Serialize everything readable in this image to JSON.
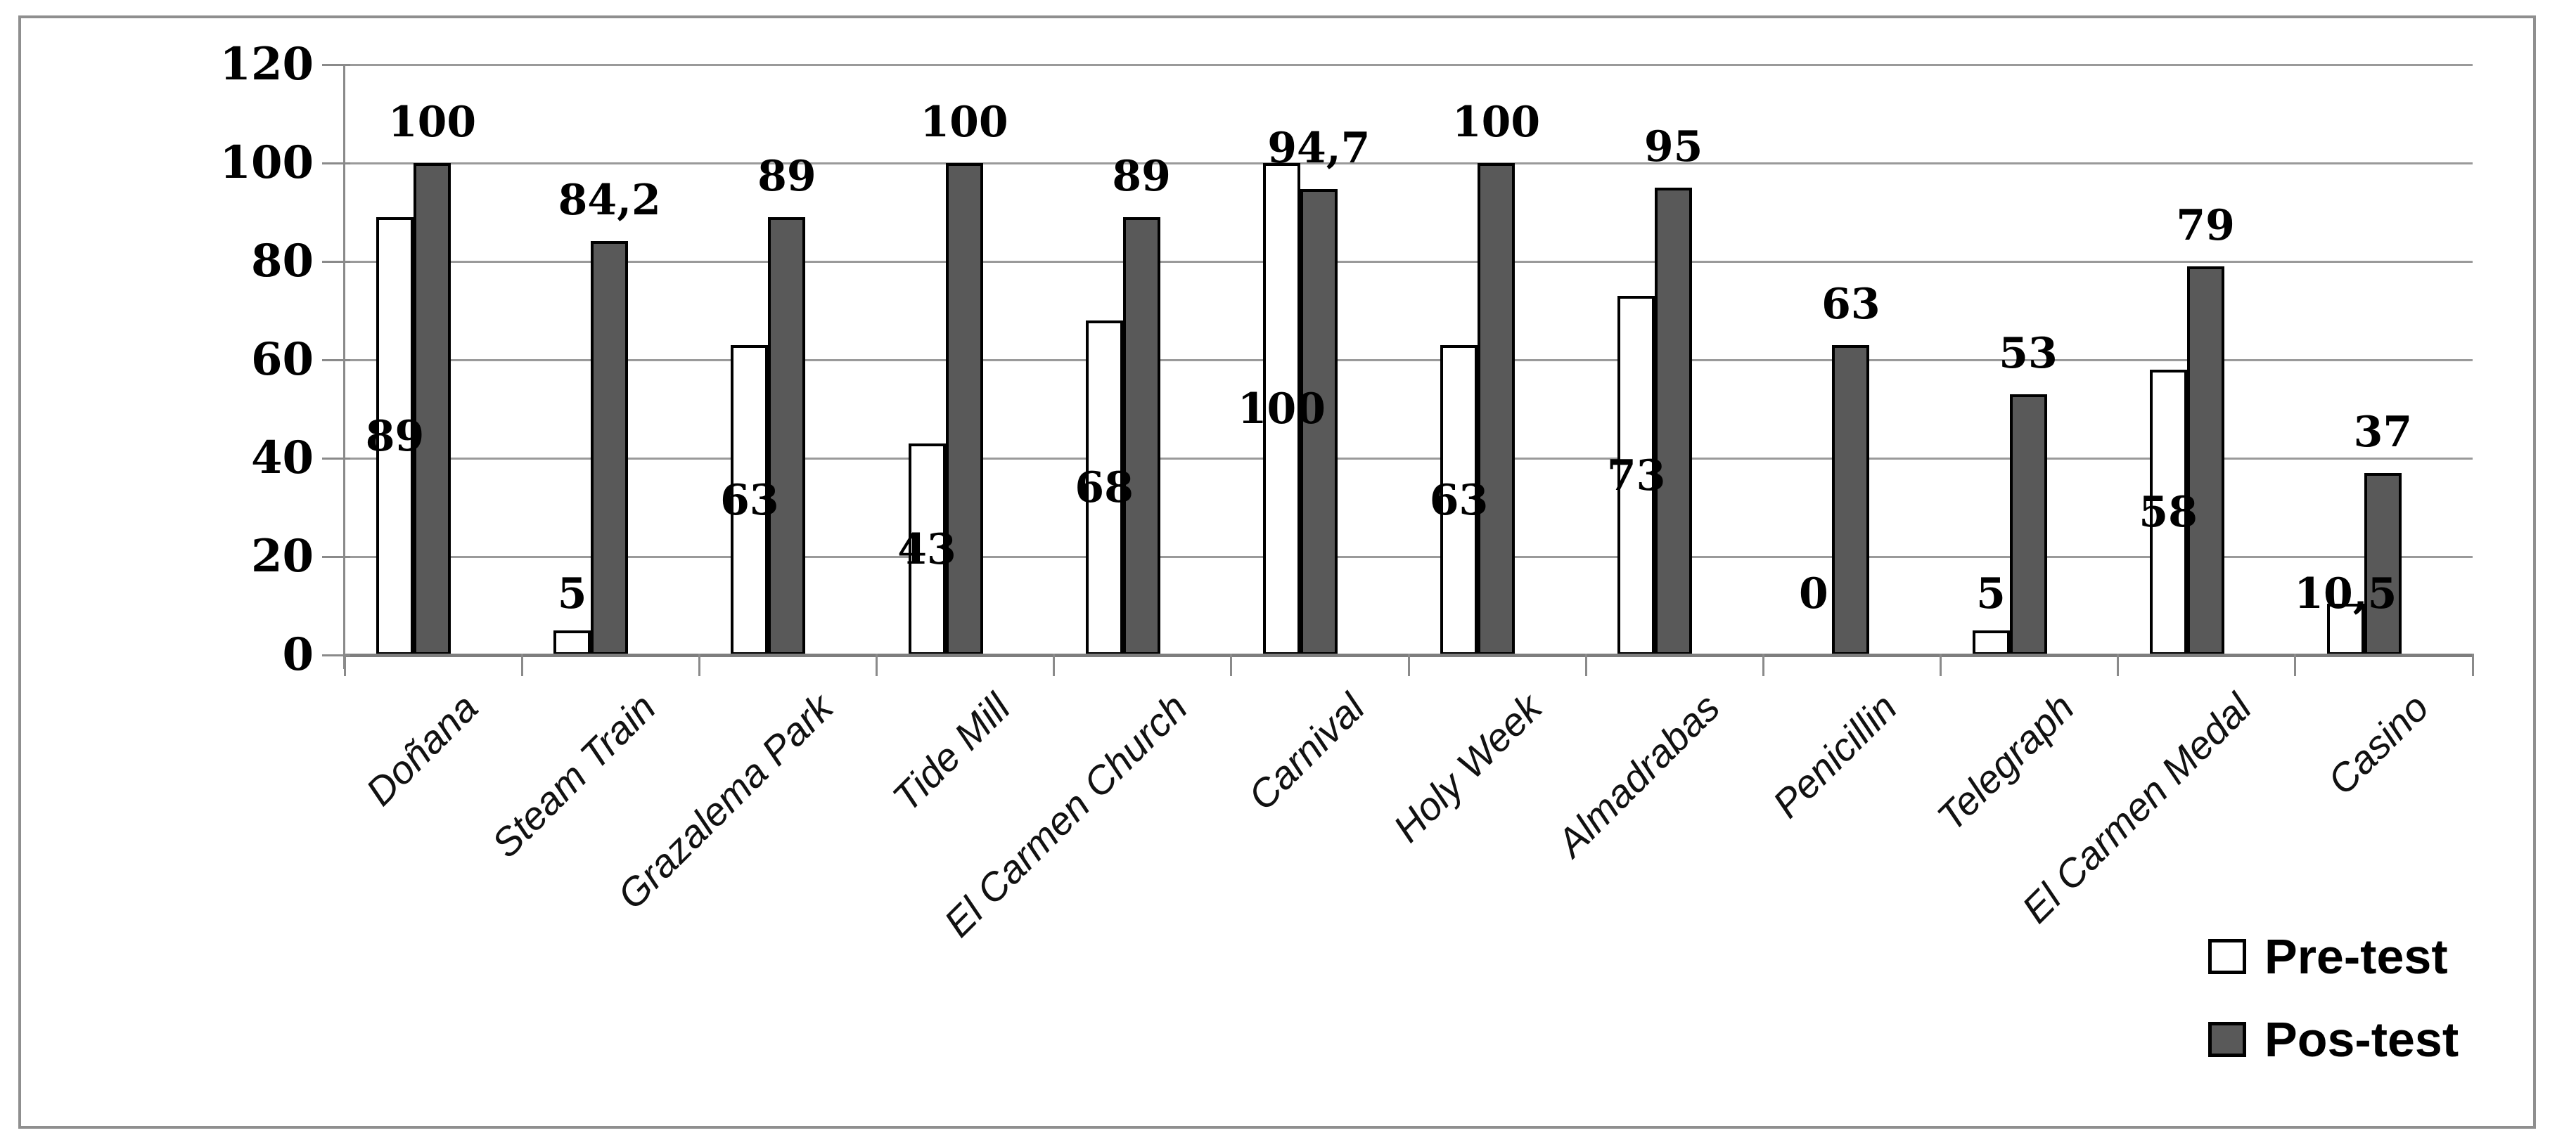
{
  "chart_data": {
    "type": "bar",
    "title": "",
    "xlabel": "",
    "ylabel": "",
    "categories": [
      "Doñana",
      "Steam Train",
      "Grazalema Park",
      "Tide Mill",
      "El Carmen Church",
      "Carnival",
      "Holy Week",
      "Almadrabas",
      "Penicillin",
      "Telegraph",
      "El Carmen Medal",
      "Casino"
    ],
    "series": [
      {
        "name": "Pre-test",
        "fill": "#ffffff",
        "border": "#000000",
        "values": [
          89,
          5,
          63,
          43,
          68,
          100,
          63,
          73,
          0,
          5,
          58,
          10.5
        ],
        "labels": [
          "89",
          "5",
          "63",
          "43",
          "68",
          "100",
          "63",
          "73",
          "0",
          "5",
          "58",
          "10,5"
        ]
      },
      {
        "name": "Pos-test",
        "fill": "#595959",
        "border": "#000000",
        "values": [
          100,
          84.2,
          89,
          100,
          89,
          94.7,
          100,
          95,
          63,
          53,
          79,
          37
        ],
        "labels": [
          "100",
          "84,2",
          "89",
          "100",
          "89",
          "94,7",
          "100",
          "95",
          "63",
          "53",
          "79",
          "37"
        ]
      }
    ],
    "ylim": [
      0,
      120
    ],
    "yticks": [
      0,
      20,
      40,
      60,
      80,
      100,
      120
    ],
    "ytick_labels": [
      "0",
      "20",
      "40",
      "60",
      "80",
      "100",
      "120"
    ],
    "grid": true,
    "legend_position": "bottom-right"
  },
  "colors": {
    "background": "#ffffff",
    "frame_border": "#8f8f8f",
    "gridline": "#9a9a9a",
    "baseline": "#7e7e7e",
    "axis": "#8a8a8a",
    "tick": "#8a8a8a",
    "label_text": "#000000"
  }
}
